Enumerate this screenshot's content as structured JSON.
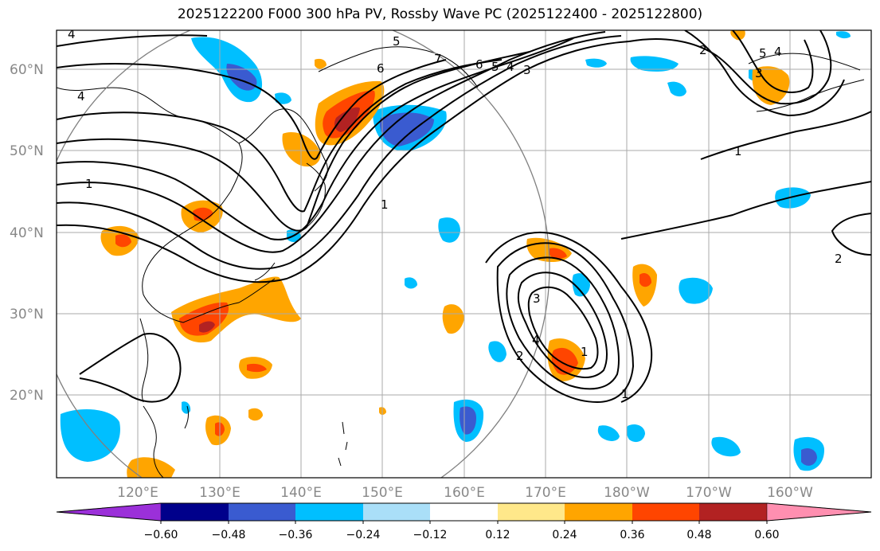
{
  "title": "2025122200 F000 300 hPa PV, Rossby Wave PC (2025122400 - 2025122800)",
  "map": {
    "lat_labels": [
      "60°N",
      "50°N",
      "40°N",
      "30°N",
      "20°N"
    ],
    "lon_labels": [
      "120°E",
      "130°E",
      "140°E",
      "150°E",
      "160°E",
      "170°E",
      "180°W",
      "170°W",
      "160°W"
    ],
    "contour_labels": [
      "4",
      "5",
      "6",
      "7",
      "6",
      "5",
      "4",
      "3",
      "1",
      "1",
      "2",
      "3",
      "4",
      "2",
      "1",
      "1",
      "2",
      "3",
      "4",
      "5",
      "4",
      "1"
    ]
  },
  "colorbar": {
    "ticks": [
      "−0.60",
      "−0.48",
      "−0.36",
      "−0.24",
      "−0.12",
      "0.12",
      "0.24",
      "0.36",
      "0.48",
      "0.60"
    ],
    "colors": [
      "#9b30d9",
      "#00008b",
      "#3a5bd0",
      "#00bfff",
      "#aadff8",
      "#ffffff",
      "#ffe88a",
      "#ffa500",
      "#ff4500",
      "#b22222",
      "#ff8fb0"
    ]
  }
}
